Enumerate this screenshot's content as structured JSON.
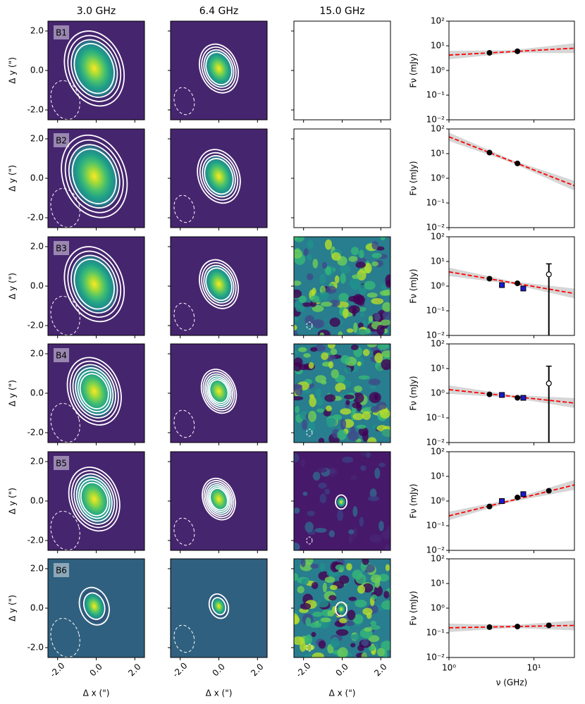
{
  "images": {
    "columns": [
      "3.0 GHz",
      "6.4 GHz",
      "15.0 GHz"
    ],
    "xlabel": "Δ x (\")",
    "ylabel": "Δ y (\")",
    "xlim": [
      -2.5,
      2.5
    ],
    "ylim": [
      -2.5,
      2.5
    ],
    "xticks": [
      {
        "value": -2,
        "label": "-2.0"
      },
      {
        "value": 0,
        "label": "0.0"
      },
      {
        "value": 2,
        "label": "2.0"
      }
    ],
    "yticks": [
      {
        "value": -2,
        "label": "-2.0"
      },
      {
        "value": 0,
        "label": "0.0"
      },
      {
        "value": 2,
        "label": "2.0"
      }
    ],
    "rows": [
      {
        "label": "B1",
        "maps": [
          true,
          true,
          false
        ]
      },
      {
        "label": "B2",
        "maps": [
          true,
          true,
          false
        ]
      },
      {
        "label": "B3",
        "maps": [
          true,
          true,
          true
        ]
      },
      {
        "label": "B4",
        "maps": [
          true,
          true,
          true
        ]
      },
      {
        "label": "B5",
        "maps": [
          true,
          true,
          true
        ]
      },
      {
        "label": "B6",
        "maps": [
          true,
          true,
          true
        ]
      }
    ]
  },
  "chart_data": [
    {
      "type": "scatter",
      "ylabel": "Fν (mJy)",
      "log": true,
      "xlim": [
        1,
        30
      ],
      "ylim": [
        0.01,
        100
      ],
      "yticks": [
        {
          "value": 0.01,
          "label": "10⁻²"
        },
        {
          "value": 0.1,
          "label": "10⁻¹"
        },
        {
          "value": 1,
          "label": "10⁰"
        },
        {
          "value": 10,
          "label": "10¹"
        },
        {
          "value": 100,
          "label": "10²"
        }
      ],
      "series": [
        {
          "marker": "circle",
          "color": "#000000",
          "x": [
            3,
            6.4
          ],
          "values": [
            5.2,
            6
          ]
        }
      ],
      "fit": {
        "color": "#ff0000",
        "x": [
          1,
          30
        ],
        "values": [
          4.2,
          8
        ]
      }
    },
    {
      "type": "scatter",
      "ylabel": "Fν (mJy)",
      "log": true,
      "xlim": [
        1,
        30
      ],
      "ylim": [
        0.01,
        100
      ],
      "yticks": [
        {
          "value": 0.01,
          "label": "10⁻²"
        },
        {
          "value": 0.1,
          "label": "10⁻¹"
        },
        {
          "value": 1,
          "label": "10⁰"
        },
        {
          "value": 10,
          "label": "10¹"
        },
        {
          "value": 100,
          "label": "10²"
        }
      ],
      "series": [
        {
          "marker": "circle",
          "color": "#000000",
          "x": [
            3,
            6.4
          ],
          "values": [
            11,
            4
          ]
        }
      ],
      "fit": {
        "color": "#ff0000",
        "x": [
          1,
          30
        ],
        "values": [
          48,
          0.5
        ]
      }
    },
    {
      "type": "scatter",
      "ylabel": "Fν (mJy)",
      "log": true,
      "xlim": [
        1,
        30
      ],
      "ylim": [
        0.01,
        100
      ],
      "yticks": [
        {
          "value": 0.01,
          "label": "10⁻²"
        },
        {
          "value": 0.1,
          "label": "10⁻¹"
        },
        {
          "value": 1,
          "label": "10⁰"
        },
        {
          "value": 10,
          "label": "10¹"
        },
        {
          "value": 100,
          "label": "10²"
        }
      ],
      "series": [
        {
          "marker": "circle",
          "color": "#000000",
          "x": [
            3,
            6.4
          ],
          "values": [
            2,
            1.3
          ]
        },
        {
          "marker": "square",
          "color": "#1a1acc",
          "x": [
            4.2,
            7.5
          ],
          "values": [
            1.1,
            0.8
          ]
        },
        {
          "marker": "open",
          "color": "#000000",
          "x": [
            15
          ],
          "values": [
            3
          ],
          "err": [
            5
          ]
        }
      ],
      "fit": {
        "color": "#ff0000",
        "x": [
          1,
          30
        ],
        "values": [
          3.8,
          0.5
        ]
      }
    },
    {
      "type": "scatter",
      "ylabel": "Fν (mJy)",
      "log": true,
      "xlim": [
        1,
        30
      ],
      "ylim": [
        0.01,
        100
      ],
      "yticks": [
        {
          "value": 0.01,
          "label": "10⁻²"
        },
        {
          "value": 0.1,
          "label": "10⁻¹"
        },
        {
          "value": 1,
          "label": "10⁰"
        },
        {
          "value": 10,
          "label": "10¹"
        },
        {
          "value": 100,
          "label": "10²"
        }
      ],
      "series": [
        {
          "marker": "circle",
          "color": "#000000",
          "x": [
            3,
            6.4
          ],
          "values": [
            0.9,
            0.65
          ]
        },
        {
          "marker": "square",
          "color": "#1a1acc",
          "x": [
            4.2,
            7.5
          ],
          "values": [
            0.85,
            0.65
          ]
        },
        {
          "marker": "open",
          "color": "#000000",
          "x": [
            15
          ],
          "values": [
            2.5
          ],
          "err": [
            10
          ]
        }
      ],
      "fit": {
        "color": "#ff0000",
        "x": [
          1,
          30
        ],
        "values": [
          1.4,
          0.4
        ]
      }
    },
    {
      "type": "scatter",
      "ylabel": "Fν (mJy)",
      "log": true,
      "xlim": [
        1,
        30
      ],
      "ylim": [
        0.01,
        100
      ],
      "yticks": [
        {
          "value": 0.01,
          "label": "10⁻²"
        },
        {
          "value": 0.1,
          "label": "10⁻¹"
        },
        {
          "value": 1,
          "label": "10⁰"
        },
        {
          "value": 10,
          "label": "10¹"
        },
        {
          "value": 100,
          "label": "10²"
        }
      ],
      "series": [
        {
          "marker": "circle",
          "color": "#000000",
          "x": [
            3,
            6.4,
            15
          ],
          "values": [
            0.6,
            1.4,
            2.6
          ]
        },
        {
          "marker": "square",
          "color": "#1a1acc",
          "x": [
            4.2,
            7.5
          ],
          "values": [
            1.0,
            1.9
          ]
        }
      ],
      "fit": {
        "color": "#ff0000",
        "x": [
          1,
          30
        ],
        "values": [
          0.25,
          4.5
        ]
      }
    },
    {
      "type": "scatter",
      "ylabel": "Fν (mJy)",
      "xlabel": "ν (GHz)",
      "log": true,
      "xlim": [
        1,
        30
      ],
      "ylim": [
        0.01,
        100
      ],
      "xticks": [
        {
          "value": 1,
          "label": "10⁰"
        },
        {
          "value": 10,
          "label": "10¹"
        }
      ],
      "yticks": [
        {
          "value": 0.01,
          "label": "10⁻²"
        },
        {
          "value": 0.1,
          "label": "10⁻¹"
        },
        {
          "value": 1,
          "label": "10⁰"
        },
        {
          "value": 10,
          "label": "10¹"
        },
        {
          "value": 100,
          "label": "10²"
        }
      ],
      "series": [
        {
          "marker": "circle",
          "color": "#000000",
          "x": [
            3,
            6.4,
            15
          ],
          "values": [
            0.17,
            0.18,
            0.2
          ]
        }
      ],
      "fit": {
        "color": "#ff0000",
        "x": [
          1,
          30
        ],
        "values": [
          0.16,
          0.2
        ]
      }
    }
  ]
}
